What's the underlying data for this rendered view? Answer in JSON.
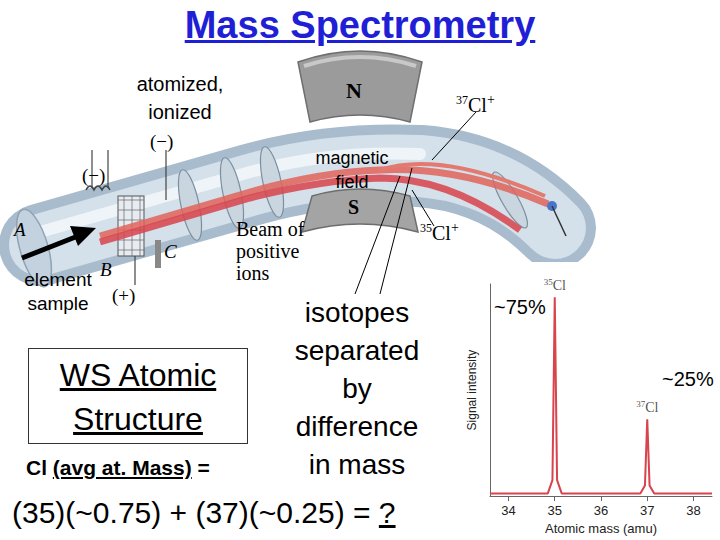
{
  "title": "Mass Spectrometry",
  "callouts": {
    "ionize": [
      "atomized,",
      "ionized"
    ],
    "magnet": [
      "magnetic",
      "field"
    ],
    "sample": [
      "element",
      "sample"
    ],
    "separation": [
      "isotopes",
      "separated",
      "by",
      "difference",
      "in mass"
    ]
  },
  "apparatus": {
    "electrodes": [
      "(−)",
      "(−)",
      "(+)"
    ],
    "points": [
      "A",
      "B",
      "C"
    ],
    "poles": [
      "N",
      "S"
    ],
    "beam": [
      "Beam of",
      "positive",
      "ions"
    ],
    "ions": [
      {
        "mass": "37",
        "symbol": "Cl",
        "charge": "+"
      },
      {
        "mass": "35",
        "symbol": "Cl",
        "charge": "+"
      }
    ]
  },
  "worksheet": [
    "WS Atomic",
    "Structure"
  ],
  "question": {
    "subject": "Cl",
    "detail": "(avg at. Mass)",
    "equals": "=",
    "formula": "(35)(~0.75) + (37)(~0.25) = ",
    "unknown": "?"
  },
  "chart_data": {
    "type": "line",
    "x": [
      33.6,
      34.85,
      34.95,
      35,
      35.05,
      35.15,
      36.85,
      36.95,
      37,
      37.05,
      37.15,
      38.4
    ],
    "values": [
      1,
      1,
      6,
      75,
      6,
      1,
      1,
      4,
      29,
      4,
      1,
      1
    ],
    "color": "#d8434c",
    "xlim": [
      33.6,
      38.4
    ],
    "xticks": [
      34,
      35,
      36,
      37,
      38
    ],
    "ylim": [
      0,
      80
    ],
    "xlabel": "Atomic mass (amu)",
    "ylabel": "Signal intensity",
    "tick_labels": "x",
    "grid": false,
    "peaks": [
      {
        "x": 35,
        "y": 75,
        "mass": "35",
        "symbol": "Cl",
        "abundance": "~75%"
      },
      {
        "x": 37,
        "y": 29,
        "mass": "37",
        "symbol": "Cl",
        "abundance": "~25%"
      }
    ]
  }
}
